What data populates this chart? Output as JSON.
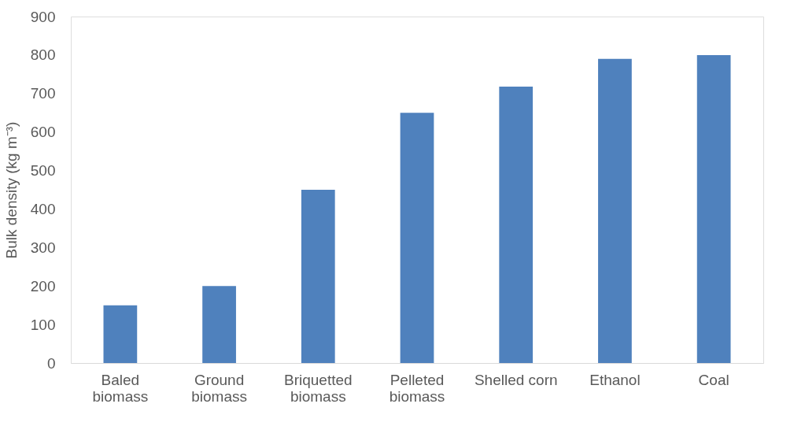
{
  "chart_data": {
    "type": "bar",
    "ylabel": "Bulk density (kg m⁻³)",
    "categories": [
      "Baled biomass",
      "Ground biomass",
      "Briquetted biomass",
      "Pelleted biomass",
      "Shelled corn",
      "Ethanol",
      "Coal"
    ],
    "values": [
      150,
      200,
      450,
      650,
      718,
      790,
      800
    ],
    "color": "#4f81bd",
    "ylim": [
      0,
      900
    ],
    "yticks": [
      0,
      100,
      200,
      300,
      400,
      500,
      600,
      700,
      800,
      900
    ],
    "grid": false
  }
}
